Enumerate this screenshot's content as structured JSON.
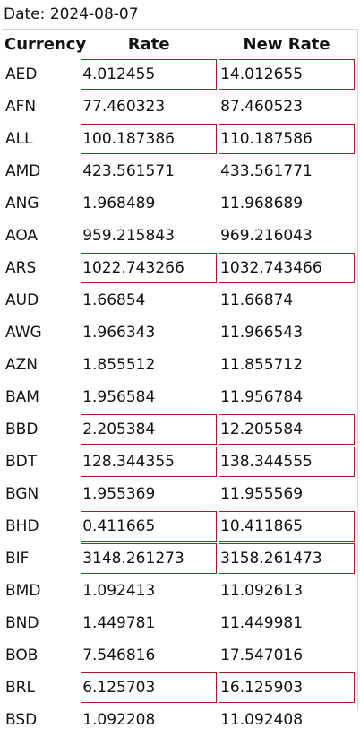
{
  "date_label": "Date: 2024-08-07",
  "table": {
    "headers": [
      "Currency",
      "Rate",
      "New Rate"
    ],
    "rows": [
      {
        "code": "AED",
        "rate": "4.012455",
        "new_rate": "14.012655",
        "highlighted": true
      },
      {
        "code": "AFN",
        "rate": "77.460323",
        "new_rate": "87.460523",
        "highlighted": false
      },
      {
        "code": "ALL",
        "rate": "100.187386",
        "new_rate": "110.187586",
        "highlighted": true
      },
      {
        "code": "AMD",
        "rate": "423.561571",
        "new_rate": "433.561771",
        "highlighted": false
      },
      {
        "code": "ANG",
        "rate": "1.968489",
        "new_rate": "11.968689",
        "highlighted": false
      },
      {
        "code": "AOA",
        "rate": "959.215843",
        "new_rate": "969.216043",
        "highlighted": false
      },
      {
        "code": "ARS",
        "rate": "1022.743266",
        "new_rate": "1032.743466",
        "highlighted": true
      },
      {
        "code": "AUD",
        "rate": "1.66854",
        "new_rate": "11.66874",
        "highlighted": false
      },
      {
        "code": "AWG",
        "rate": "1.966343",
        "new_rate": "11.966543",
        "highlighted": false
      },
      {
        "code": "AZN",
        "rate": "1.855512",
        "new_rate": "11.855712",
        "highlighted": false
      },
      {
        "code": "BAM",
        "rate": "1.956584",
        "new_rate": "11.956784",
        "highlighted": false
      },
      {
        "code": "BBD",
        "rate": "2.205384",
        "new_rate": "12.205584",
        "highlighted": true
      },
      {
        "code": "BDT",
        "rate": "128.344355",
        "new_rate": "138.344555",
        "highlighted": true
      },
      {
        "code": "BGN",
        "rate": "1.955369",
        "new_rate": "11.955569",
        "highlighted": false
      },
      {
        "code": "BHD",
        "rate": "0.411665",
        "new_rate": "10.411865",
        "highlighted": true
      },
      {
        "code": "BIF",
        "rate": "3148.261273",
        "new_rate": "3158.261473",
        "highlighted": true
      },
      {
        "code": "BMD",
        "rate": "1.092413",
        "new_rate": "11.092613",
        "highlighted": false
      },
      {
        "code": "BND",
        "rate": "1.449781",
        "new_rate": "11.449981",
        "highlighted": false
      },
      {
        "code": "BOB",
        "rate": "7.546816",
        "new_rate": "17.547016",
        "highlighted": false
      },
      {
        "code": "BRL",
        "rate": "6.125703",
        "new_rate": "16.125903",
        "highlighted": true
      },
      {
        "code": "BSD",
        "rate": "1.092208",
        "new_rate": "11.092408",
        "highlighted": false
      }
    ]
  },
  "colors": {
    "highlight_border": "#a51d24",
    "text": "#111111",
    "background": "#ffffff"
  }
}
